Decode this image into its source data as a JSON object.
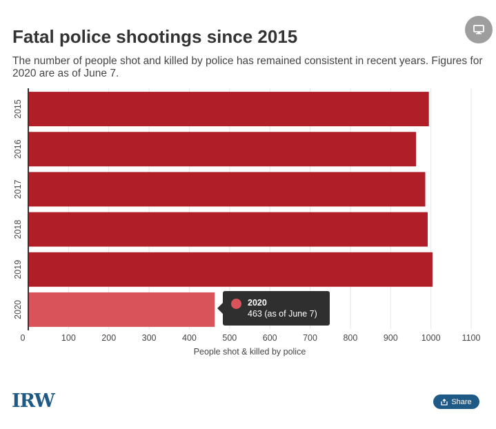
{
  "header": {
    "title": "Fatal police shootings since 2015",
    "subtitle": "The number of people shot and killed by police has remained consistent in recent years. Figures for 2020 are as of June 7."
  },
  "chart_data": {
    "type": "bar",
    "orientation": "horizontal",
    "categories": [
      "2015",
      "2016",
      "2017",
      "2018",
      "2019",
      "2020"
    ],
    "values": [
      995,
      963,
      986,
      992,
      1004,
      463
    ],
    "xlabel": "People shot & killed by police",
    "ylabel": "",
    "xlim": [
      0,
      1100
    ],
    "xticks": [
      0,
      100,
      200,
      300,
      400,
      500,
      600,
      700,
      800,
      900,
      1000,
      1100
    ],
    "grid": true,
    "bar_color": "#b01e28",
    "highlight_color": "#d9535a",
    "highlight_index": 5
  },
  "tooltip": {
    "title": "2020",
    "value": "463 (as of June 7)"
  },
  "footer": {
    "logo_text": "IRW",
    "share_label": "Share"
  },
  "colors": {
    "brand": "#1f5a86",
    "screen_button": "#9e9e9e"
  },
  "icons": {
    "screen": "monitor-icon",
    "share": "share-icon"
  }
}
